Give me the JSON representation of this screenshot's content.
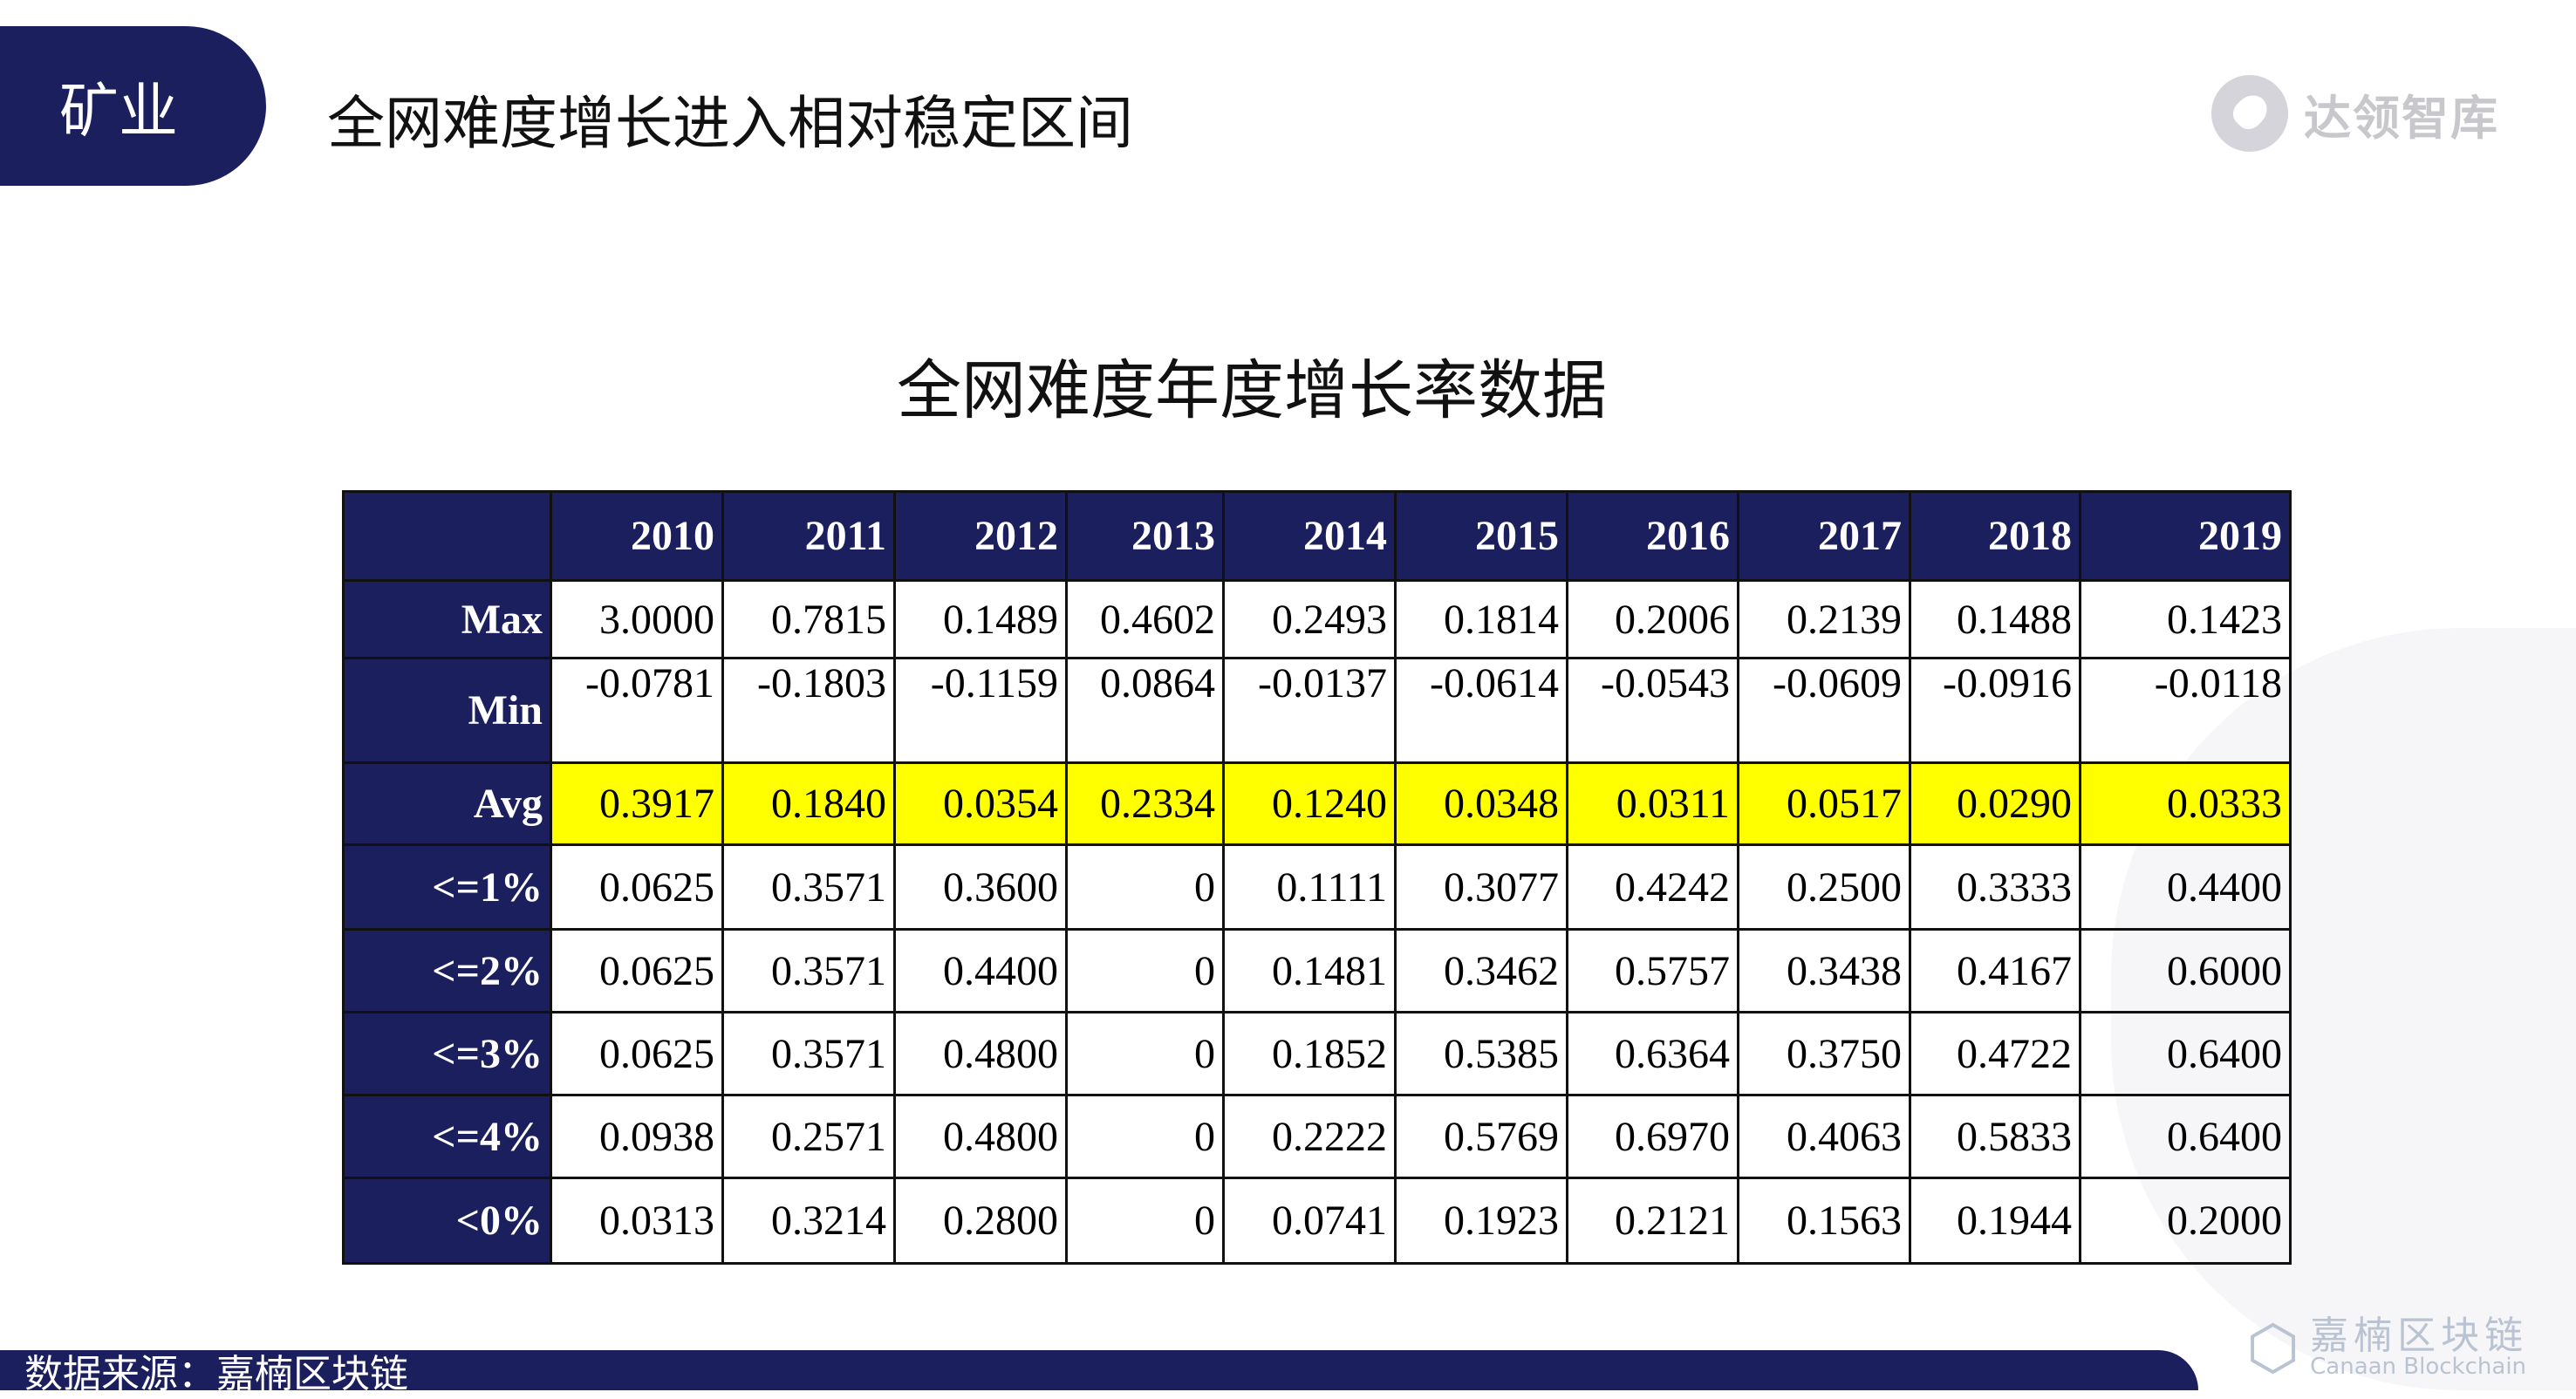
{
  "header": {
    "section_tab": "矿业",
    "title": "全网难度增长进入相对稳定区间",
    "logo_text": "达领智库"
  },
  "table_title": "全网难度年度增长率数据",
  "table": {
    "columns": [
      "",
      "2010",
      "2011",
      "2012",
      "2013",
      "2014",
      "2015",
      "2016",
      "2017",
      "2018",
      "2019"
    ],
    "rows": [
      {
        "label": "Max",
        "values": [
          "3.0000",
          "0.7815",
          "0.1489",
          "0.4602",
          "0.2493",
          "0.1814",
          "0.2006",
          "0.2139",
          "0.1488",
          "0.1423"
        ]
      },
      {
        "label": "Min",
        "values": [
          "-0.0781",
          "-0.1803",
          "-0.1159",
          "0.0864",
          "-0.0137",
          "-0.0614",
          "-0.0543",
          "-0.0609",
          "-0.0916",
          "-0.0118"
        ]
      },
      {
        "label": "Avg",
        "values": [
          "0.3917",
          "0.1840",
          "0.0354",
          "0.2334",
          "0.1240",
          "0.0348",
          "0.0311",
          "0.0517",
          "0.0290",
          "0.0333"
        ],
        "highlight": "#ffff00"
      },
      {
        "label": "<=1%",
        "values": [
          "0.0625",
          "0.3571",
          "0.3600",
          "0",
          "0.1111",
          "0.3077",
          "0.4242",
          "0.2500",
          "0.3333",
          "0.4400"
        ]
      },
      {
        "label": "<=2%",
        "values": [
          "0.0625",
          "0.3571",
          "0.4400",
          "0",
          "0.1481",
          "0.3462",
          "0.5757",
          "0.3438",
          "0.4167",
          "0.6000"
        ]
      },
      {
        "label": "<=3%",
        "values": [
          "0.0625",
          "0.3571",
          "0.4800",
          "0",
          "0.1852",
          "0.5385",
          "0.6364",
          "0.3750",
          "0.4722",
          "0.6400"
        ]
      },
      {
        "label": "<=4%",
        "values": [
          "0.0938",
          "0.2571",
          "0.4800",
          "0",
          "0.2222",
          "0.5769",
          "0.6970",
          "0.4063",
          "0.5833",
          "0.6400"
        ]
      },
      {
        "label": "<0%",
        "values": [
          "0.0313",
          "0.3214",
          "0.2800",
          "0",
          "0.0741",
          "0.1923",
          "0.2121",
          "0.1563",
          "0.1944",
          "0.2000"
        ]
      }
    ]
  },
  "footer": {
    "source": "数据来源：嘉楠区块链",
    "logo_cn": "嘉楠区块链",
    "logo_en": "Canaan Blockchain"
  },
  "colors": {
    "navy": "#1b1f5e",
    "highlight": "#ffff00"
  }
}
